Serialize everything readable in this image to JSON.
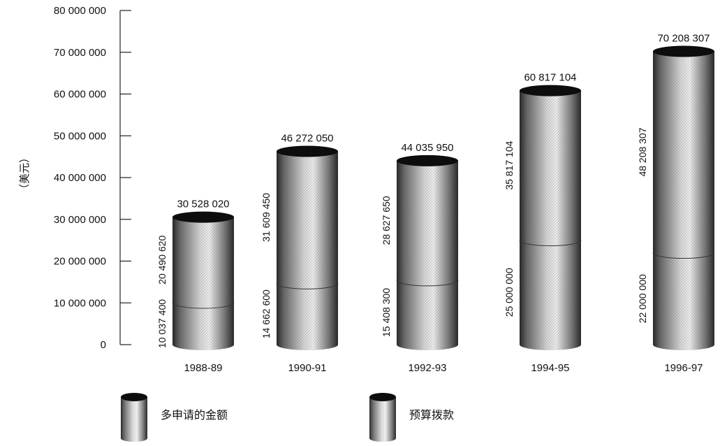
{
  "chart_data": {
    "type": "bar",
    "ylabel": "（美元）",
    "ylim": [
      0,
      80000000
    ],
    "y_ticks": [
      "0",
      "10 000 000",
      "20 000 000",
      "30 000 000",
      "40 000 000",
      "50 000 000",
      "60 000 000",
      "70 000 000",
      "80 000 000"
    ],
    "y_tick_values": [
      0,
      10000000,
      20000000,
      30000000,
      40000000,
      50000000,
      60000000,
      70000000,
      80000000
    ],
    "categories": [
      "1988-89",
      "1990-91",
      "1992-93",
      "1994-95",
      "1996-97"
    ],
    "series": [
      {
        "name": "预算拨款",
        "values": [
          10037400,
          14662600,
          15408300,
          25000000,
          22000000
        ],
        "labels": [
          "10 037 400",
          "14 662 600",
          "15 408 300",
          "25 000 000",
          "22 000 000"
        ]
      },
      {
        "name": "多申请的金额",
        "values": [
          20490620,
          31609450,
          28627650,
          35817104,
          48208307
        ],
        "labels": [
          "20 490 620",
          "31 609 450",
          "28 627 650",
          "35 817 104",
          "48 208 307"
        ]
      }
    ],
    "totals": [
      30528020,
      46272050,
      44035950,
      60817104,
      70208307
    ],
    "total_labels": [
      "30 528 020",
      "46 272 050",
      "44 035 950",
      "60 817 104",
      "70 208 307"
    ],
    "stacked": true,
    "legend": [
      "多申请的金额",
      "预算拨款"
    ],
    "legend_position": "bottom",
    "grid": false,
    "style": "stacked 3d cylinders, grayscale"
  }
}
